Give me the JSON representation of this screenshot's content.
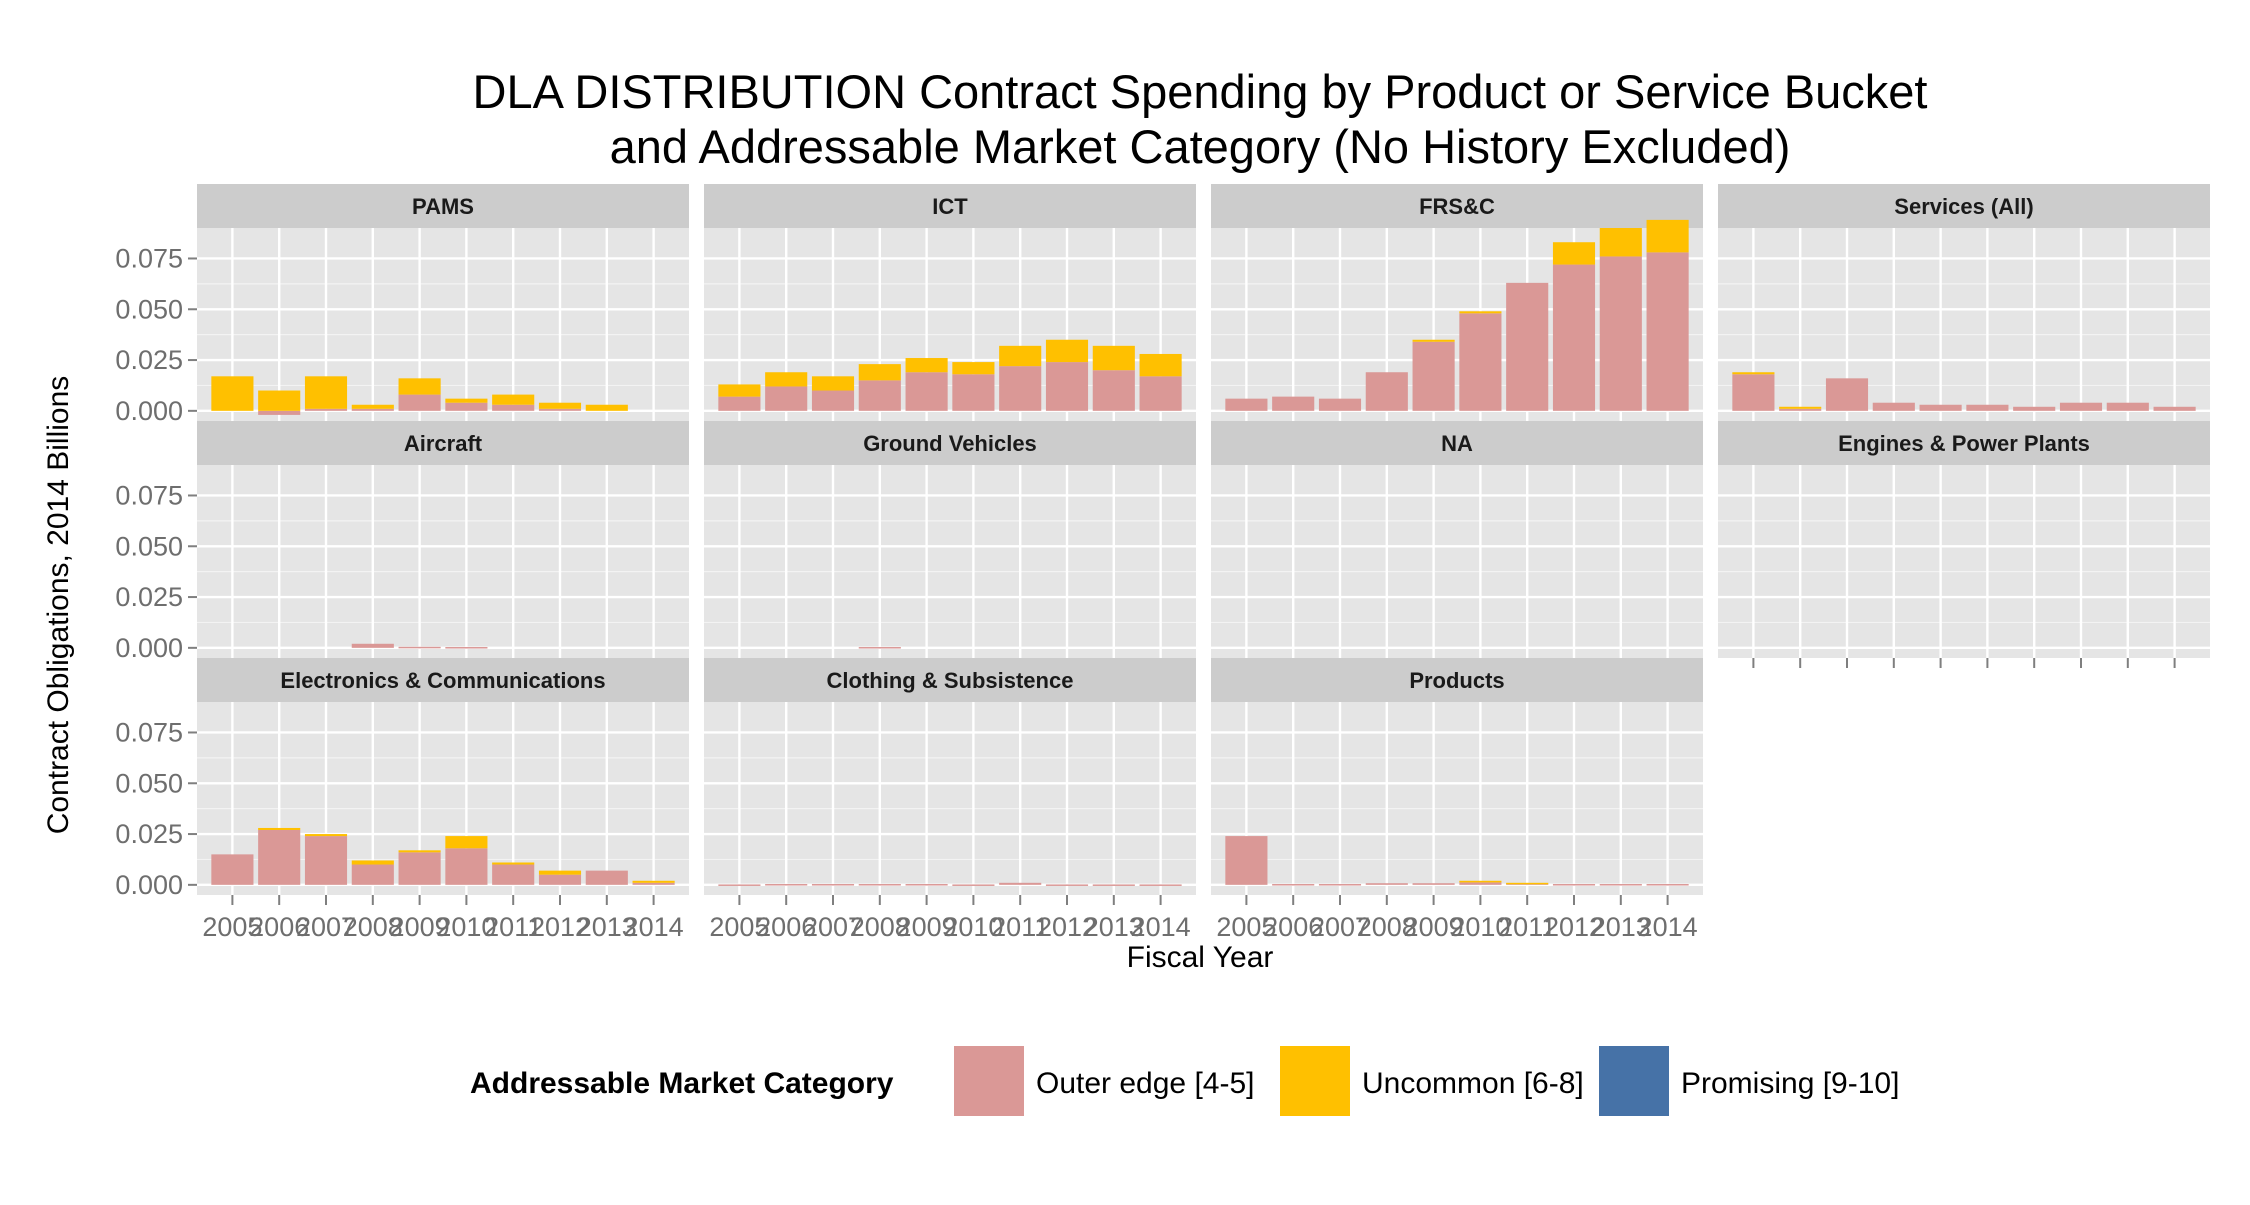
{
  "chart_data": {
    "type": "bar",
    "title_lines": [
      "DLA DISTRIBUTION Contract Spending by Product or Service Bucket",
      "and Addressable Market Category (No History Excluded)"
    ],
    "xlabel": "Fiscal Year",
    "ylabel": "Contract Obligations, 2014 Billions",
    "x": [
      "2005",
      "2006",
      "2007",
      "2008",
      "2009",
      "2010",
      "2011",
      "2012",
      "2013",
      "2014"
    ],
    "y_ticks": [
      "0.000",
      "0.025",
      "0.050",
      "0.075"
    ],
    "ylim": [
      -0.005,
      0.09
    ],
    "stacked": true,
    "grid": true,
    "legend": {
      "title": "Addressable Market Category",
      "position": "bottom",
      "items": [
        {
          "label": "Outer edge [4-5]",
          "color": "#DA9896"
        },
        {
          "label": "Uncommon [6-8]",
          "color": "#FFC000"
        },
        {
          "label": "Promising [9-10]",
          "color": "#4672A7"
        }
      ]
    },
    "colors": {
      "outer_edge": "#DA9896",
      "uncommon": "#FFC000",
      "promising": "#4672A7",
      "panel_bg": "#E5E5E5",
      "strip_bg": "#CCCCCC",
      "grid": "#FFFFFF"
    },
    "panels": [
      {
        "name": "PAMS",
        "series": [
          {
            "name": "Outer edge [4-5]",
            "values": [
              0.0,
              -0.002,
              0.001,
              0.001,
              0.008,
              0.004,
              0.003,
              0.001,
              0.0,
              null
            ]
          },
          {
            "name": "Uncommon [6-8]",
            "values": [
              0.017,
              0.01,
              0.016,
              0.002,
              0.008,
              0.002,
              0.005,
              0.003,
              0.003,
              null
            ]
          },
          {
            "name": "Promising [9-10]",
            "values": [
              0,
              0,
              0,
              0,
              0,
              0,
              0,
              0,
              0,
              null
            ]
          }
        ]
      },
      {
        "name": "ICT",
        "series": [
          {
            "name": "Outer edge [4-5]",
            "values": [
              0.007,
              0.012,
              0.01,
              0.015,
              0.019,
              0.018,
              0.022,
              0.024,
              0.02,
              0.017
            ]
          },
          {
            "name": "Uncommon [6-8]",
            "values": [
              0.006,
              0.007,
              0.007,
              0.008,
              0.007,
              0.006,
              0.01,
              0.011,
              0.012,
              0.011
            ]
          },
          {
            "name": "Promising [9-10]",
            "values": [
              0,
              0,
              0,
              0,
              0,
              0,
              0,
              0,
              0,
              0
            ]
          }
        ]
      },
      {
        "name": "FRS&C",
        "series": [
          {
            "name": "Outer edge [4-5]",
            "values": [
              0.006,
              0.007,
              0.006,
              0.019,
              0.034,
              0.048,
              0.063,
              0.072,
              0.076,
              0.078
            ]
          },
          {
            "name": "Uncommon [6-8]",
            "values": [
              0.0,
              0.0,
              0.0,
              0.0,
              0.001,
              0.001,
              0.0,
              0.011,
              0.014,
              0.016
            ]
          },
          {
            "name": "Promising [9-10]",
            "values": [
              0,
              0,
              0,
              0,
              0,
              0,
              0,
              0,
              0,
              0
            ]
          }
        ]
      },
      {
        "name": "Services (All)",
        "series": [
          {
            "name": "Outer edge [4-5]",
            "values": [
              0.018,
              0.001,
              0.016,
              0.004,
              0.003,
              0.003,
              0.002,
              0.004,
              0.004,
              0.002
            ]
          },
          {
            "name": "Uncommon [6-8]",
            "values": [
              0.001,
              0.001,
              0.0,
              0.0,
              0.0,
              0.0,
              0.0,
              0.0,
              0.0,
              0.0
            ]
          },
          {
            "name": "Promising [9-10]",
            "values": [
              0,
              0,
              0,
              0,
              0,
              0,
              0,
              0,
              0,
              0
            ]
          }
        ]
      },
      {
        "name": "Aircraft",
        "series": [
          {
            "name": "Outer edge [4-5]",
            "values": [
              null,
              null,
              null,
              0.002,
              0.0005,
              0.0004,
              null,
              null,
              null,
              null
            ]
          },
          {
            "name": "Uncommon [6-8]",
            "values": [
              null,
              null,
              null,
              0,
              0,
              0,
              null,
              null,
              null,
              null
            ]
          },
          {
            "name": "Promising [9-10]",
            "values": [
              null,
              null,
              null,
              0,
              0,
              0,
              null,
              null,
              null,
              null
            ]
          }
        ]
      },
      {
        "name": "Ground Vehicles",
        "series": [
          {
            "name": "Outer edge [4-5]",
            "values": [
              null,
              null,
              null,
              0.0004,
              null,
              null,
              null,
              null,
              null,
              null
            ]
          },
          {
            "name": "Uncommon [6-8]",
            "values": [
              null,
              null,
              null,
              0,
              null,
              null,
              null,
              null,
              null,
              null
            ]
          },
          {
            "name": "Promising [9-10]",
            "values": [
              null,
              null,
              null,
              0,
              null,
              null,
              null,
              null,
              null,
              null
            ]
          }
        ]
      },
      {
        "name": "NA",
        "series": [
          {
            "name": "Outer edge [4-5]",
            "values": [
              null,
              null,
              null,
              null,
              null,
              null,
              null,
              null,
              null,
              null
            ]
          },
          {
            "name": "Uncommon [6-8]",
            "values": [
              null,
              null,
              null,
              null,
              null,
              null,
              null,
              null,
              null,
              null
            ]
          },
          {
            "name": "Promising [9-10]",
            "values": [
              null,
              null,
              null,
              null,
              null,
              null,
              null,
              null,
              null,
              null
            ]
          }
        ]
      },
      {
        "name": "Engines & Power Plants",
        "series": [
          {
            "name": "Outer edge [4-5]",
            "values": [
              null,
              null,
              null,
              null,
              null,
              null,
              null,
              null,
              null,
              null
            ]
          },
          {
            "name": "Uncommon [6-8]",
            "values": [
              null,
              null,
              null,
              null,
              null,
              null,
              null,
              null,
              null,
              null
            ]
          },
          {
            "name": "Promising [9-10]",
            "values": [
              null,
              null,
              null,
              null,
              null,
              null,
              null,
              null,
              null,
              null
            ]
          }
        ]
      },
      {
        "name": "Electronics & Communications",
        "series": [
          {
            "name": "Outer edge [4-5]",
            "values": [
              0.015,
              0.027,
              0.024,
              0.01,
              0.016,
              0.018,
              0.01,
              0.005,
              0.007,
              0.001
            ]
          },
          {
            "name": "Uncommon [6-8]",
            "values": [
              0.0,
              0.001,
              0.001,
              0.002,
              0.001,
              0.006,
              0.001,
              0.002,
              0.0,
              0.001
            ]
          },
          {
            "name": "Promising [9-10]",
            "values": [
              0,
              0,
              0,
              0,
              0,
              0,
              0,
              0,
              0,
              0
            ]
          }
        ]
      },
      {
        "name": "Clothing & Subsistence",
        "series": [
          {
            "name": "Outer edge [4-5]",
            "values": [
              0.0002,
              0.0004,
              0.0004,
              0.0004,
              0.0004,
              0.0002,
              0.001,
              0.0002,
              0.0002,
              0.0002
            ]
          },
          {
            "name": "Uncommon [6-8]",
            "values": [
              0,
              0,
              0,
              0,
              0,
              0,
              0,
              0,
              0,
              0
            ]
          },
          {
            "name": "Promising [9-10]",
            "values": [
              0,
              0,
              0,
              0,
              0,
              0,
              0,
              0,
              0,
              0
            ]
          }
        ]
      },
      {
        "name": "Products",
        "series": [
          {
            "name": "Outer edge [4-5]",
            "values": [
              0.024,
              0.0004,
              0.0004,
              0.0008,
              0.0008,
              0.0012,
              0.0008,
              0.0004,
              0.0004,
              0.0004
            ]
          },
          {
            "name": "Uncommon [6-8]",
            "values": [
              0,
              0,
              0,
              0,
              0,
              0.0008,
              0.0002,
              0,
              0,
              0
            ]
          },
          {
            "name": "Promising [9-10]",
            "values": [
              0,
              0,
              0,
              0,
              0,
              0,
              0,
              0,
              0,
              0
            ]
          }
        ]
      }
    ]
  }
}
